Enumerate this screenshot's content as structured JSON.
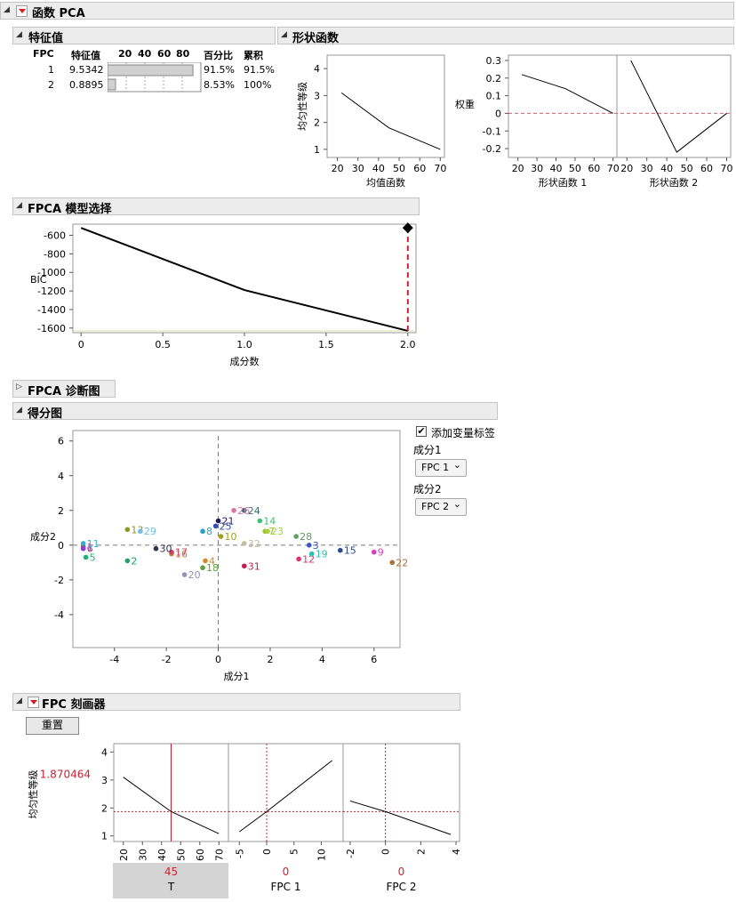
{
  "report": {
    "title": "函数 PCA"
  },
  "eigen": {
    "title": "特征值",
    "headers": {
      "fpc": "FPC",
      "value": "特征值",
      "bar_ticks": [
        "20",
        "40",
        "60",
        "80"
      ],
      "percent": "百分比",
      "cum": "累积"
    },
    "rows": [
      {
        "fpc": "1",
        "value": "9.5342",
        "percent": "91.5%",
        "cum": "91.5%",
        "pct": 91.5
      },
      {
        "fpc": "2",
        "value": "0.8895",
        "percent": "8.53%",
        "cum": "100%",
        "pct": 8.53
      }
    ]
  },
  "shape": {
    "title": "形状函数",
    "mean_ylabel": "均匀性等级",
    "mean_xlabel": "均值函数",
    "weight_ylabel": "权重",
    "fpc1_xlabel": "形状函数 1",
    "fpc2_xlabel": "形状函数 2",
    "x_ticks": [
      "20",
      "30",
      "40",
      "50",
      "60",
      "70"
    ],
    "mean_y_ticks": [
      "1",
      "2",
      "3",
      "4"
    ],
    "weight_y_ticks": [
      "-0.2",
      "-0.1",
      "0",
      "0.1",
      "0.2",
      "0.3"
    ],
    "mean_curve": [
      [
        22,
        3.1
      ],
      [
        45,
        1.8
      ],
      [
        70,
        1.0
      ]
    ],
    "fpc1_curve": [
      [
        22,
        0.22
      ],
      [
        45,
        0.14
      ],
      [
        70,
        0.0
      ]
    ],
    "fpc2_curve": [
      [
        22,
        0.3
      ],
      [
        45,
        -0.22
      ],
      [
        70,
        0.0
      ]
    ]
  },
  "bic": {
    "title": "FPCA 模型选择",
    "ylabel": "BIC",
    "xlabel": "成分数",
    "y_ticks": [
      "-600",
      "-800",
      "-1000",
      "-1200",
      "-1400",
      "-1600"
    ],
    "x_ticks": [
      "0",
      "0.5",
      "1.0",
      "1.5",
      "2.0"
    ],
    "points": [
      [
        0,
        -520
      ],
      [
        1,
        -1190
      ],
      [
        2,
        -1630
      ]
    ],
    "selected": 2
  },
  "diag": {
    "title": "FPCA 诊断图"
  },
  "scores": {
    "title": "得分图",
    "xlabel": "成分1",
    "ylabel": "成分2",
    "x_ticks": [
      "-4",
      "-2",
      "0",
      "2",
      "4",
      "6"
    ],
    "y_ticks": [
      "6",
      "4",
      "2",
      "0",
      "-2",
      "-4"
    ],
    "checkbox_label": "添加变量标签",
    "comp1_label": "成分1",
    "comp1_value": "FPC 1",
    "comp2_label": "成分2",
    "comp2_value": "FPC 2",
    "points": [
      {
        "id": "1",
        "x": -5.2,
        "y": -0.1,
        "c": "#d04040"
      },
      {
        "id": "2",
        "x": -3.5,
        "y": -0.9,
        "c": "#22a36a"
      },
      {
        "id": "3",
        "x": 3.5,
        "y": 0.0,
        "c": "#3b57c4"
      },
      {
        "id": "4",
        "x": -0.5,
        "y": -0.9,
        "c": "#d08a2a"
      },
      {
        "id": "5",
        "x": -5.1,
        "y": -0.7,
        "c": "#22b070"
      },
      {
        "id": "6",
        "x": -5.2,
        "y": -0.2,
        "c": "#8f3cd8"
      },
      {
        "id": "7",
        "x": 1.8,
        "y": 0.8,
        "c": "#a0c030"
      },
      {
        "id": "8",
        "x": -0.6,
        "y": 0.8,
        "c": "#2aa0c0"
      },
      {
        "id": "9",
        "x": 6.0,
        "y": -0.4,
        "c": "#d040c8"
      },
      {
        "id": "10",
        "x": 0.1,
        "y": 0.5,
        "c": "#a0a020"
      },
      {
        "id": "11",
        "x": -5.2,
        "y": 0.1,
        "c": "#30b0d0"
      },
      {
        "id": "12",
        "x": 3.1,
        "y": -0.8,
        "c": "#e03070"
      },
      {
        "id": "13",
        "x": -3.5,
        "y": 0.9,
        "c": "#8a9a20"
      },
      {
        "id": "14",
        "x": 1.6,
        "y": 1.4,
        "c": "#40c070"
      },
      {
        "id": "15",
        "x": 4.7,
        "y": -0.3,
        "c": "#284c8c"
      },
      {
        "id": "16",
        "x": -1.8,
        "y": -0.5,
        "c": "#c08040"
      },
      {
        "id": "17",
        "x": -1.8,
        "y": -0.4,
        "c": "#d04060"
      },
      {
        "id": "18",
        "x": -0.6,
        "y": -1.3,
        "c": "#60a040"
      },
      {
        "id": "19",
        "x": 3.6,
        "y": -0.5,
        "c": "#30c0b0"
      },
      {
        "id": "20",
        "x": -1.3,
        "y": -1.7,
        "c": "#9090b8"
      },
      {
        "id": "21",
        "x": 0.0,
        "y": 1.4,
        "c": "#281860"
      },
      {
        "id": "22",
        "x": 6.7,
        "y": -1.0,
        "c": "#b07030"
      },
      {
        "id": "23",
        "x": 1.9,
        "y": 0.8,
        "c": "#a8d040"
      },
      {
        "id": "24",
        "x": 1.0,
        "y": 2.0,
        "c": "#3a6a6a"
      },
      {
        "id": "25",
        "x": -0.1,
        "y": 1.1,
        "c": "#3050b0"
      },
      {
        "id": "26",
        "x": 0.6,
        "y": 2.0,
        "c": "#e070a8"
      },
      {
        "id": "28",
        "x": 3.0,
        "y": 0.5,
        "c": "#60a060"
      },
      {
        "id": "29",
        "x": -3.0,
        "y": 0.8,
        "c": "#70c0e0"
      },
      {
        "id": "30",
        "x": -2.4,
        "y": -0.2,
        "c": "#303050"
      },
      {
        "id": "31",
        "x": 1.0,
        "y": -1.2,
        "c": "#c02050"
      },
      {
        "id": "32",
        "x": 1.0,
        "y": 0.1,
        "c": "#c0c0a0"
      }
    ]
  },
  "profiler": {
    "title": "FPC 刻画器",
    "reset_label": "重置",
    "ylabel": "均匀性等级",
    "y_value": "1.870464",
    "y_ticks": [
      "1",
      "2",
      "3",
      "4"
    ],
    "panels": [
      {
        "label": "T",
        "value": "45",
        "ticks": [
          "20",
          "30",
          "40",
          "50",
          "60",
          "70"
        ]
      },
      {
        "label": "FPC 1",
        "value": "0",
        "ticks": [
          "-5",
          "0",
          "5",
          "10"
        ]
      },
      {
        "label": "FPC 2",
        "value": "0",
        "ticks": [
          "-2",
          "0",
          "2",
          "4"
        ]
      }
    ]
  }
}
